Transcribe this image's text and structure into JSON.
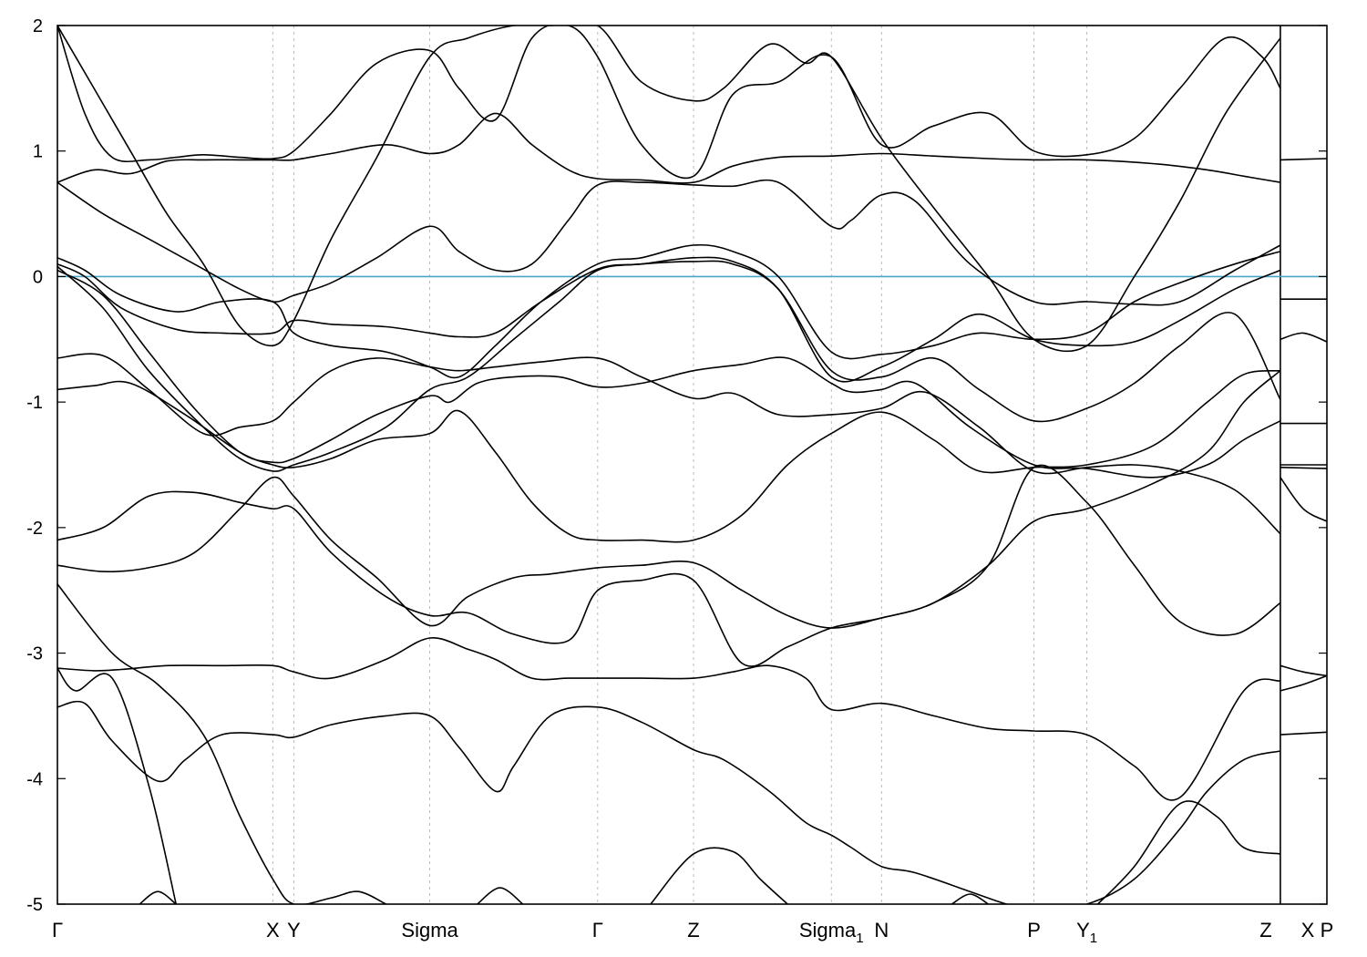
{
  "chart_data": {
    "type": "line",
    "title": "",
    "xlabel": "",
    "ylabel": "",
    "ylim": [
      -5,
      2
    ],
    "yticks": [
      -5,
      -4,
      -3,
      -2,
      -1,
      0,
      1,
      2
    ],
    "fermi_level": 0,
    "grid": "vertical dashed lines at high-symmetry points",
    "colors": {
      "bands": "#000000",
      "fermi": "#4aa6c8",
      "grid": "#aaaaaa"
    },
    "xlim": [
      0,
      1391
    ],
    "break_segments": [
      [
        0,
        1340
      ],
      [
        1340,
        1391
      ]
    ],
    "kpoints": [
      {
        "label": "Γ",
        "sub": "",
        "x": 0
      },
      {
        "label": "X",
        "sub": "",
        "x": 236
      },
      {
        "label": "Y",
        "sub": "",
        "x": 259
      },
      {
        "label": "Sigma",
        "sub": "",
        "x": 408
      },
      {
        "label": "Γ",
        "sub": "",
        "x": 592
      },
      {
        "label": "Z",
        "sub": "",
        "x": 697
      },
      {
        "label": "Sigma",
        "sub": "1",
        "x": 848
      },
      {
        "label": "N",
        "sub": "",
        "x": 903
      },
      {
        "label": "P",
        "sub": "",
        "x": 1070
      },
      {
        "label": "Y",
        "sub": "",
        "sub2": "1",
        "x": 1128
      },
      {
        "label": "Z",
        "sub": "",
        "x": 1340
      },
      {
        "label": "X",
        "sub": "",
        "x": 1340
      },
      {
        "label": "P",
        "sub": "",
        "x": 1391
      }
    ],
    "series": [
      {
        "x": [
          0,
          30,
          60,
          110,
          140,
          180,
          236,
          259,
          300,
          360,
          408,
          440,
          480,
          500,
          540,
          592,
          640,
          697,
          730,
          780,
          820,
          848,
          870,
          903,
          940,
          1000,
          1040,
          1070,
          1128,
          1180,
          1230,
          1260,
          1300,
          1340
        ],
        "y": [
          -3.43,
          -3.4,
          -3.7,
          -4.02,
          -3.85,
          -3.65,
          -3.65,
          -3.67,
          -3.57,
          -3.5,
          -3.5,
          -3.75,
          -4.1,
          -3.9,
          -3.5,
          -3.43,
          -3.55,
          -3.77,
          -3.85,
          -4.1,
          -4.35,
          -4.45,
          -4.55,
          -4.7,
          -4.75,
          -4.9,
          -5.0,
          -5.05,
          -5.0,
          -4.8,
          -4.4,
          -4.1,
          -3.85,
          -3.78
        ]
      },
      {
        "x": [
          0,
          40,
          70,
          120,
          180,
          236,
          259,
          300,
          360,
          408,
          450,
          480,
          520,
          560,
          592,
          640,
          697,
          740,
          780,
          820,
          848,
          903,
          960,
          1020,
          1070,
          1128,
          1180,
          1230,
          1300,
          1340
        ],
        "y": [
          -3.12,
          -3.14,
          -3.13,
          -3.1,
          -3.1,
          -3.1,
          -3.15,
          -3.2,
          -3.05,
          -2.88,
          -2.97,
          -3.05,
          -3.2,
          -3.2,
          -3.2,
          -3.2,
          -3.2,
          -3.15,
          -3.1,
          -3.2,
          -3.45,
          -3.4,
          -3.5,
          -3.6,
          -3.62,
          -3.65,
          -3.9,
          -4.15,
          -3.3,
          -3.22
        ]
      },
      {
        "x": [
          0,
          50,
          100,
          150,
          200,
          236,
          259,
          300,
          350,
          408,
          450,
          500,
          540,
          592,
          640,
          697,
          750,
          800,
          848,
          903,
          960,
          1020,
          1070,
          1128,
          1200,
          1260,
          1300,
          1340
        ],
        "y": [
          -2.3,
          -2.35,
          -2.32,
          -2.2,
          -1.85,
          -1.6,
          -1.75,
          -2.1,
          -2.4,
          -2.78,
          -2.55,
          -2.4,
          -2.37,
          -2.32,
          -2.3,
          -2.28,
          -2.5,
          -2.7,
          -2.8,
          -2.72,
          -2.6,
          -2.3,
          -1.95,
          -1.85,
          -1.65,
          -1.4,
          -1.0,
          -0.75
        ]
      },
      {
        "x": [
          0,
          50,
          100,
          150,
          200,
          236,
          259,
          300,
          360,
          408,
          450,
          500,
          560,
          592,
          640,
          697,
          750,
          800,
          848,
          903,
          960,
          1020,
          1070,
          1128,
          1180,
          1230,
          1290,
          1340
        ],
        "y": [
          -2.1,
          -2.0,
          -1.75,
          -1.72,
          -1.8,
          -1.85,
          -1.85,
          -2.2,
          -2.55,
          -2.7,
          -2.68,
          -2.85,
          -2.9,
          -2.5,
          -2.42,
          -2.42,
          -3.08,
          -2.95,
          -2.8,
          -2.72,
          -2.6,
          -2.3,
          -1.52,
          -1.8,
          -2.3,
          -2.75,
          -2.85,
          -2.6
        ]
      },
      {
        "x": [
          0,
          40,
          80,
          140,
          200,
          236,
          259,
          300,
          350,
          408,
          440,
          480,
          520,
          560,
          592,
          640,
          697,
          750,
          800,
          848,
          903,
          960,
          1010,
          1070,
          1128,
          1200,
          1260,
          1300,
          1340
        ],
        "y": [
          -0.9,
          -0.87,
          -0.85,
          -1.1,
          -1.4,
          -1.5,
          -1.52,
          -1.45,
          -1.3,
          -1.25,
          -1.07,
          -1.4,
          -1.8,
          -2.05,
          -2.1,
          -2.1,
          -2.1,
          -1.9,
          -1.5,
          -1.25,
          -1.08,
          -1.3,
          -1.55,
          -1.52,
          -1.5,
          -1.35,
          -1.0,
          -0.78,
          -0.75
        ]
      },
      {
        "x": [
          0,
          50,
          100,
          160,
          200,
          236,
          259,
          300,
          350,
          408,
          440,
          480,
          530,
          592,
          640,
          697,
          740,
          790,
          848,
          903,
          950,
          1010,
          1070,
          1128,
          1180,
          1230,
          1290,
          1340
        ],
        "y": [
          -0.65,
          -0.63,
          -0.9,
          -1.25,
          -1.2,
          -1.15,
          -1.0,
          -0.75,
          -0.65,
          -0.72,
          -0.75,
          -0.72,
          -0.68,
          -0.65,
          -0.8,
          -0.97,
          -0.93,
          -1.1,
          -1.1,
          -1.05,
          -0.92,
          -1.2,
          -1.55,
          -1.52,
          -1.5,
          -1.55,
          -1.7,
          -2.05
        ]
      },
      {
        "x": [
          0,
          50,
          100,
          150,
          200,
          236,
          259,
          300,
          350,
          408,
          430,
          460,
          500,
          550,
          592,
          640,
          697,
          750,
          800,
          848,
          870,
          903,
          940,
          1000,
          1070,
          1128,
          1200,
          1260,
          1300,
          1340
        ],
        "y": [
          0.05,
          -0.15,
          -0.6,
          -1.05,
          -1.4,
          -1.48,
          -1.45,
          -1.3,
          -1.1,
          -0.95,
          -1.0,
          -0.85,
          -0.8,
          -0.8,
          -0.88,
          -0.85,
          -0.75,
          -0.7,
          -0.65,
          -0.85,
          -0.92,
          -0.9,
          -0.85,
          -1.2,
          -1.5,
          -1.53,
          -1.6,
          -1.5,
          -1.3,
          -1.15
        ]
      },
      {
        "x": [
          0,
          50,
          100,
          160,
          200,
          236,
          259,
          300,
          360,
          408,
          450,
          500,
          550,
          592,
          640,
          697,
          740,
          790,
          848,
          903,
          960,
          1010,
          1070,
          1128,
          1180,
          1230,
          1290,
          1340
        ],
        "y": [
          0.08,
          -0.25,
          -0.75,
          -1.2,
          -1.45,
          -1.55,
          -1.5,
          -1.4,
          -1.2,
          -0.9,
          -0.8,
          -0.5,
          -0.2,
          0.05,
          0.1,
          0.12,
          0.1,
          -0.1,
          -0.75,
          -0.8,
          -0.65,
          -0.9,
          -1.15,
          -1.05,
          -0.85,
          -0.55,
          -0.3,
          -0.98
        ]
      },
      {
        "x": [
          0,
          30,
          70,
          130,
          180,
          236,
          259,
          300,
          360,
          408,
          440,
          480,
          530,
          592,
          640,
          697,
          740,
          790,
          848,
          903,
          960,
          1010,
          1070,
          1128,
          1180,
          1230,
          1290,
          1340
        ],
        "y": [
          0.1,
          0.0,
          -0.25,
          -0.42,
          -0.45,
          -0.45,
          -0.35,
          -0.38,
          -0.4,
          -0.45,
          -0.48,
          -0.45,
          -0.2,
          0.06,
          0.1,
          0.15,
          0.12,
          -0.1,
          -0.8,
          -0.72,
          -0.5,
          -0.3,
          -0.5,
          -0.55,
          -0.52,
          -0.35,
          -0.1,
          0.05
        ]
      },
      {
        "x": [
          0,
          30,
          70,
          130,
          180,
          236,
          259,
          300,
          360,
          408,
          440,
          480,
          530,
          592,
          640,
          697,
          740,
          790,
          848,
          903,
          960,
          1010,
          1070,
          1128,
          1180,
          1230,
          1290,
          1340
        ],
        "y": [
          0.15,
          0.05,
          -0.15,
          -0.28,
          -0.2,
          -0.2,
          -0.45,
          -0.55,
          -0.6,
          -0.72,
          -0.8,
          -0.55,
          -0.2,
          0.1,
          0.15,
          0.25,
          0.2,
          0.0,
          -0.6,
          -0.62,
          -0.55,
          -0.45,
          -0.5,
          -0.45,
          -0.2,
          -0.05,
          0.1,
          0.2
        ]
      },
      {
        "x": [
          0,
          50,
          100,
          150,
          200,
          236,
          259,
          300,
          350,
          408,
          440,
          480,
          520,
          560,
          592,
          640,
          697,
          740,
          790,
          848,
          870,
          903,
          940,
          1000,
          1070,
          1128,
          1180,
          1230,
          1290,
          1340
        ],
        "y": [
          0.75,
          0.5,
          0.3,
          0.1,
          -0.1,
          -0.2,
          -0.15,
          -0.05,
          0.15,
          0.4,
          0.2,
          0.05,
          0.1,
          0.45,
          0.73,
          0.75,
          0.73,
          0.72,
          0.75,
          0.4,
          0.45,
          0.65,
          0.6,
          0.1,
          -0.2,
          -0.2,
          -0.22,
          -0.2,
          0.05,
          0.25
        ]
      },
      {
        "x": [
          0,
          40,
          80,
          120,
          160,
          200,
          236,
          259,
          300,
          360,
          408,
          440,
          480,
          520,
          560,
          592,
          640,
          697,
          740,
          790,
          848,
          903,
          960,
          1020,
          1070,
          1128,
          1200,
          1260,
          1300,
          1340
        ],
        "y": [
          0.75,
          0.85,
          0.82,
          0.92,
          0.93,
          0.93,
          0.93,
          0.93,
          0.98,
          1.05,
          0.98,
          1.05,
          1.3,
          1.05,
          0.85,
          0.78,
          0.77,
          0.75,
          0.88,
          0.95,
          0.96,
          0.98,
          0.96,
          0.94,
          0.93,
          0.93,
          0.9,
          0.85,
          0.8,
          0.75
        ]
      },
      {
        "x": [
          0,
          30,
          60,
          100,
          130,
          160,
          200,
          236,
          259,
          300,
          350,
          408,
          440,
          480,
          520,
          560,
          592,
          640,
          697,
          740,
          790,
          848,
          903,
          960,
          1020,
          1070,
          1128,
          1180,
          1230,
          1280,
          1320,
          1340
        ],
        "y": [
          2.0,
          1.3,
          0.95,
          0.93,
          0.95,
          0.97,
          0.95,
          0.94,
          1.0,
          1.3,
          1.7,
          1.8,
          1.5,
          1.25,
          1.9,
          2.0,
          1.75,
          1.05,
          0.8,
          1.45,
          1.55,
          1.75,
          1.05,
          1.2,
          1.3,
          1.0,
          0.97,
          1.1,
          1.5,
          1.9,
          1.75,
          1.5
        ]
      },
      {
        "x": [
          0,
          40,
          80,
          120,
          160,
          200,
          236,
          259,
          300,
          350,
          408,
          450,
          500,
          540,
          592,
          640,
          697,
          730,
          780,
          820,
          848,
          903,
          960,
          1020,
          1070,
          1128,
          1180,
          1230,
          1280,
          1340
        ],
        "y": [
          2.0,
          1.5,
          1.0,
          0.5,
          0.1,
          -0.4,
          -0.55,
          -0.35,
          0.3,
          0.95,
          1.75,
          1.9,
          2.0,
          2.0,
          2.0,
          1.55,
          1.4,
          1.5,
          1.85,
          1.7,
          1.75,
          1.1,
          0.55,
          0.0,
          -0.5,
          -0.55,
          0.0,
          0.6,
          1.3,
          1.9
        ]
      },
      {
        "x": [
          0,
          60,
          110,
          160,
          200,
          236,
          259,
          300,
          330,
          360
        ],
        "y": [
          -2.45,
          -3.0,
          -3.25,
          -3.65,
          -4.3,
          -4.8,
          -5.0,
          -4.95,
          -4.9,
          -5.0
        ]
      },
      {
        "x": [
          0,
          20,
          60,
          100,
          130
        ],
        "y": [
          -3.12,
          -3.3,
          -3.2,
          -4.05,
          -5.0
        ]
      },
      {
        "x": [
          90,
          110,
          130
        ],
        "y": [
          -5.0,
          -4.9,
          -5.0
        ]
      },
      {
        "x": [
          460,
          485,
          510
        ],
        "y": [
          -5.0,
          -4.87,
          -5.0
        ]
      },
      {
        "x": [
          650,
          697,
          740,
          770,
          800
        ],
        "y": [
          -5.0,
          -4.6,
          -4.58,
          -4.8,
          -5.0
        ]
      },
      {
        "x": [
          980,
          1000,
          1020
        ],
        "y": [
          -5.0,
          -4.92,
          -5.0
        ]
      },
      {
        "x": [
          1140,
          1180,
          1230,
          1270,
          1300,
          1340
        ],
        "y": [
          -5.0,
          -4.7,
          -4.2,
          -4.3,
          -4.55,
          -4.6
        ]
      },
      {
        "x": [
          1340,
          1391
        ],
        "y": [
          0.93,
          0.94
        ]
      },
      {
        "x": [
          1340,
          1391
        ],
        "y": [
          -0.18,
          -0.18
        ]
      },
      {
        "x": [
          1340,
          1365,
          1391
        ],
        "y": [
          -0.5,
          -0.45,
          -0.52
        ]
      },
      {
        "x": [
          1340,
          1391
        ],
        "y": [
          -1.17,
          -1.17
        ]
      },
      {
        "x": [
          1340,
          1391
        ],
        "y": [
          -1.5,
          -1.5
        ]
      },
      {
        "x": [
          1340,
          1391
        ],
        "y": [
          -1.52,
          -1.53
        ]
      },
      {
        "x": [
          1340,
          1365,
          1391
        ],
        "y": [
          -1.6,
          -1.85,
          -1.95
        ]
      },
      {
        "x": [
          1340,
          1365,
          1391
        ],
        "y": [
          -3.1,
          -3.15,
          -3.18
        ]
      },
      {
        "x": [
          1340,
          1365,
          1391
        ],
        "y": [
          -3.3,
          -3.25,
          -3.18
        ]
      },
      {
        "x": [
          1340,
          1391
        ],
        "y": [
          -3.65,
          -3.63
        ]
      }
    ]
  }
}
